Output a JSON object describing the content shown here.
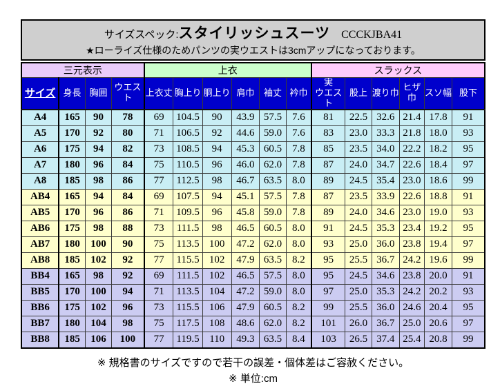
{
  "title": {
    "label": "サイズスペック:",
    "product": "スタイリッシュスーツ",
    "code": "CCCKJBA41",
    "note": "★ローライズ仕様のためパンツの実ウエストは3cmアップになっております。"
  },
  "table": {
    "groups": [
      {
        "label": "三元表示",
        "span": 4,
        "color": "#eaccfa"
      },
      {
        "label": "上衣",
        "span": 6,
        "color": "#ccffcc"
      },
      {
        "label": "スラックス",
        "span": 6,
        "color": "#ffccfc"
      }
    ],
    "header_bg": "#0000cc",
    "columns": [
      "サイズ",
      "身長",
      "胸囲",
      "ウエスト",
      "上衣丈",
      "胸上り",
      "胴上り",
      "肩巾",
      "袖丈",
      "衿巾",
      "実\nウエスト",
      "股上",
      "渡り巾",
      "ヒザ\n巾",
      "スソ幅",
      "股下"
    ],
    "row_colors": {
      "A": "#c9eef5",
      "AB": "#ffffcc",
      "BB": "#ccccf2"
    },
    "rows": [
      {
        "size": "A4",
        "group": "A",
        "values": [
          "165",
          "90",
          "78",
          "69",
          "104.5",
          "90",
          "43.9",
          "57.5",
          "7.6",
          "81",
          "22.5",
          "32.6",
          "21.4",
          "17.8",
          "91"
        ]
      },
      {
        "size": "A5",
        "group": "A",
        "values": [
          "170",
          "92",
          "80",
          "71",
          "106.5",
          "92",
          "44.6",
          "59.0",
          "7.6",
          "83",
          "23.0",
          "33.3",
          "21.8",
          "18.0",
          "93"
        ]
      },
      {
        "size": "A6",
        "group": "A",
        "values": [
          "175",
          "94",
          "82",
          "73",
          "108.5",
          "94",
          "45.3",
          "60.5",
          "7.8",
          "85",
          "23.5",
          "34.0",
          "22.2",
          "18.2",
          "95"
        ]
      },
      {
        "size": "A7",
        "group": "A",
        "values": [
          "180",
          "96",
          "84",
          "75",
          "110.5",
          "96",
          "46.0",
          "62.0",
          "7.8",
          "87",
          "24.0",
          "34.7",
          "22.6",
          "18.4",
          "97"
        ]
      },
      {
        "size": "A8",
        "group": "A",
        "values": [
          "185",
          "98",
          "86",
          "77",
          "112.5",
          "98",
          "46.7",
          "63.5",
          "8.0",
          "89",
          "24.5",
          "35.4",
          "23.0",
          "18.6",
          "99"
        ]
      },
      {
        "size": "AB4",
        "group": "AB",
        "values": [
          "165",
          "94",
          "84",
          "69",
          "107.5",
          "94",
          "45.1",
          "57.5",
          "7.8",
          "87",
          "23.5",
          "33.9",
          "22.6",
          "18.8",
          "91"
        ]
      },
      {
        "size": "AB5",
        "group": "AB",
        "values": [
          "170",
          "96",
          "86",
          "71",
          "109.5",
          "96",
          "45.8",
          "59.0",
          "7.8",
          "89",
          "24.0",
          "34.6",
          "23.0",
          "19.0",
          "93"
        ]
      },
      {
        "size": "AB6",
        "group": "AB",
        "values": [
          "175",
          "98",
          "88",
          "73",
          "111.5",
          "98",
          "46.5",
          "60.5",
          "8.0",
          "91",
          "24.5",
          "35.3",
          "23.4",
          "19.2",
          "95"
        ]
      },
      {
        "size": "AB7",
        "group": "AB",
        "values": [
          "180",
          "100",
          "90",
          "75",
          "113.5",
          "100",
          "47.2",
          "62.0",
          "8.0",
          "93",
          "25.0",
          "36.0",
          "23.8",
          "19.4",
          "97"
        ]
      },
      {
        "size": "AB8",
        "group": "AB",
        "values": [
          "185",
          "102",
          "92",
          "77",
          "115.5",
          "102",
          "47.9",
          "63.5",
          "8.2",
          "95",
          "25.5",
          "36.7",
          "24.2",
          "19.6",
          "99"
        ]
      },
      {
        "size": "BB4",
        "group": "BB",
        "values": [
          "165",
          "98",
          "92",
          "69",
          "111.5",
          "102",
          "46.5",
          "57.5",
          "8.0",
          "95",
          "24.5",
          "34.6",
          "23.8",
          "20.0",
          "91"
        ]
      },
      {
        "size": "BB5",
        "group": "BB",
        "values": [
          "170",
          "100",
          "94",
          "71",
          "113.5",
          "104",
          "47.2",
          "59.0",
          "8.0",
          "97",
          "25.0",
          "35.3",
          "24.2",
          "20.2",
          "93"
        ]
      },
      {
        "size": "BB6",
        "group": "BB",
        "values": [
          "175",
          "102",
          "96",
          "73",
          "115.5",
          "106",
          "47.9",
          "60.5",
          "8.2",
          "99",
          "25.5",
          "36.0",
          "24.6",
          "20.4",
          "95"
        ]
      },
      {
        "size": "BB7",
        "group": "BB",
        "values": [
          "180",
          "104",
          "98",
          "75",
          "117.5",
          "108",
          "48.6",
          "62.0",
          "8.2",
          "101",
          "26.0",
          "36.7",
          "25.0",
          "20.6",
          "97"
        ]
      },
      {
        "size": "BB8",
        "group": "BB",
        "values": [
          "185",
          "106",
          "100",
          "77",
          "119.5",
          "110",
          "49.3",
          "63.5",
          "8.4",
          "103",
          "26.5",
          "37.4",
          "25.4",
          "20.8",
          "99"
        ]
      }
    ]
  },
  "footer": {
    "note1": "※ 規格書のサイズですので若干の誤差・個体差はご容赦ください。",
    "note2": "※ 単位:cm"
  }
}
